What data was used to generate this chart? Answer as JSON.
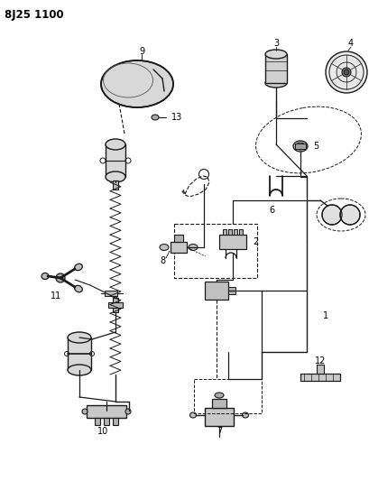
{
  "title": "8J25 1100",
  "bg_color": "#ffffff",
  "lc": "#1a1a1a",
  "title_fontsize": 8.5,
  "lbl_fs": 7,
  "fig_w": 4.09,
  "fig_h": 5.33,
  "dpi": 100
}
